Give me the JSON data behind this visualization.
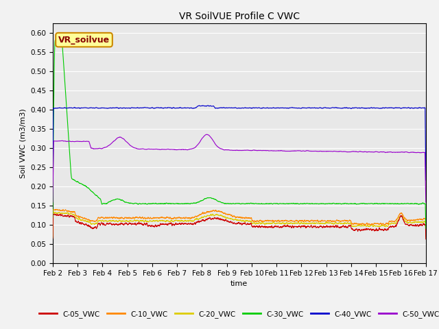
{
  "title": "VR SoilVUE Profile C VWC",
  "xlabel": "time",
  "ylabel": "Soil VWC (m3/m3)",
  "ylim": [
    0.0,
    0.625
  ],
  "yticks": [
    0.0,
    0.05,
    0.1,
    0.15,
    0.2,
    0.25,
    0.3,
    0.35,
    0.4,
    0.45,
    0.5,
    0.55,
    0.6
  ],
  "xtick_labels": [
    "Feb 2",
    "Feb 3",
    "Feb 4",
    "Feb 5",
    "Feb 6",
    "Feb 7",
    "Feb 8",
    "Feb 9",
    "Feb 10",
    "Feb 11",
    "Feb 12",
    "Feb 13",
    "Feb 14",
    "Feb 15",
    "Feb 16",
    "Feb 17"
  ],
  "background_color": "#e8e8e8",
  "fig_background": "#f2f2f2",
  "grid_color": "#ffffff",
  "series_colors": {
    "C-05_VWC": "#cc0000",
    "C-10_VWC": "#ff8800",
    "C-20_VWC": "#ddcc00",
    "C-30_VWC": "#00cc00",
    "C-40_VWC": "#0000cc",
    "C-50_VWC": "#9900cc"
  },
  "watermark_text": "VR_soilvue",
  "watermark_bg": "#ffff99",
  "watermark_border": "#cc8800",
  "num_points": 3600
}
